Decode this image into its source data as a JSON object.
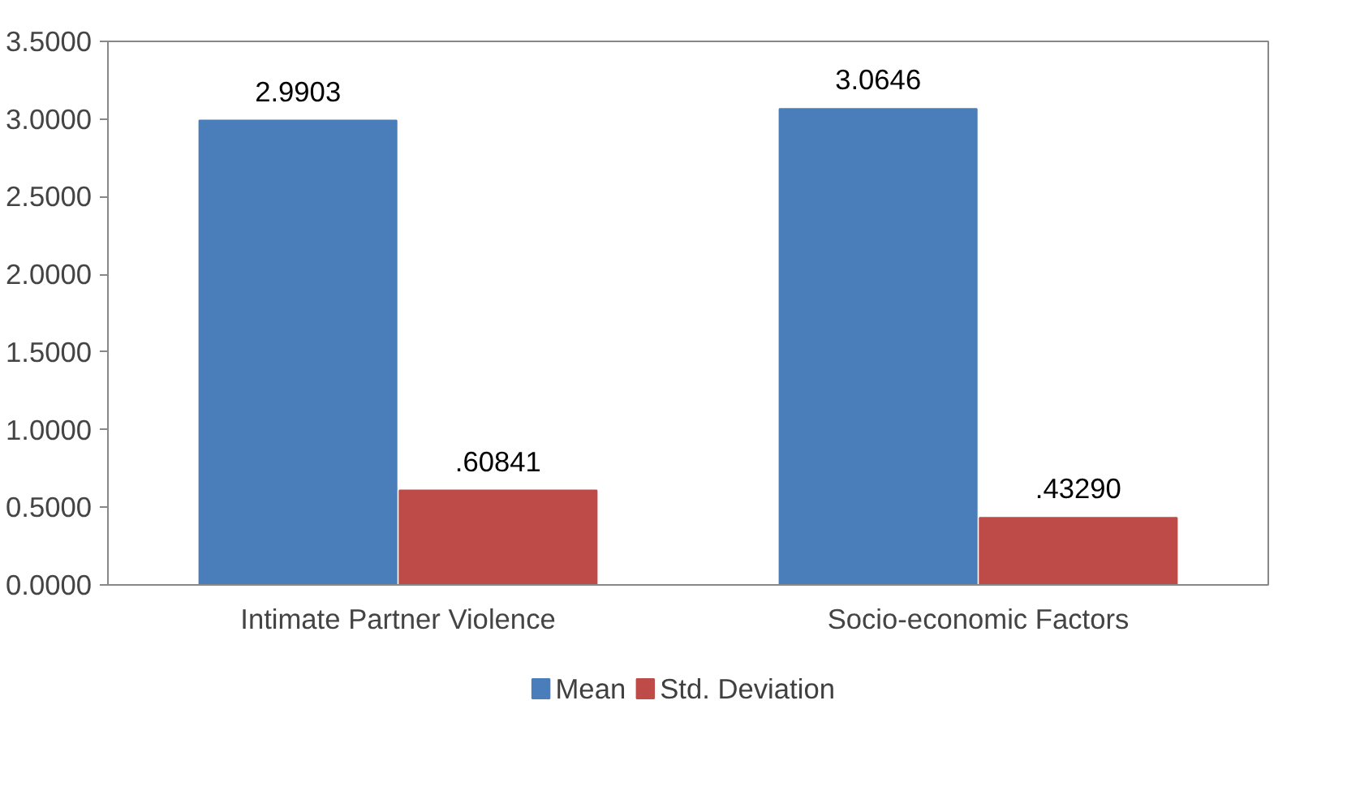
{
  "chart_data": {
    "type": "bar",
    "categories": [
      "Intimate Partner Violence",
      "Socio-economic Factors"
    ],
    "series": [
      {
        "name": "Mean",
        "color": "#4a7ebb",
        "values": [
          2.9903,
          3.0646
        ],
        "value_labels": [
          "2.9903",
          "3.0646"
        ]
      },
      {
        "name": "Std. Deviation",
        "color": "#be4b48",
        "values": [
          0.60841,
          0.4329
        ],
        "value_labels": [
          ".60841",
          ".43290"
        ]
      }
    ],
    "ylim": [
      0,
      3.5
    ],
    "yticks": [
      {
        "value": 0,
        "label": "0.0000"
      },
      {
        "value": 0.5,
        "label": "0.5000"
      },
      {
        "value": 1,
        "label": "1.0000"
      },
      {
        "value": 1.5,
        "label": "1.5000"
      },
      {
        "value": 2,
        "label": "2.0000"
      },
      {
        "value": 2.5,
        "label": "2.5000"
      },
      {
        "value": 3,
        "label": "3.0000"
      },
      {
        "value": 3.5,
        "label": "3.5000"
      }
    ],
    "grid": false,
    "legend": "bottom"
  }
}
